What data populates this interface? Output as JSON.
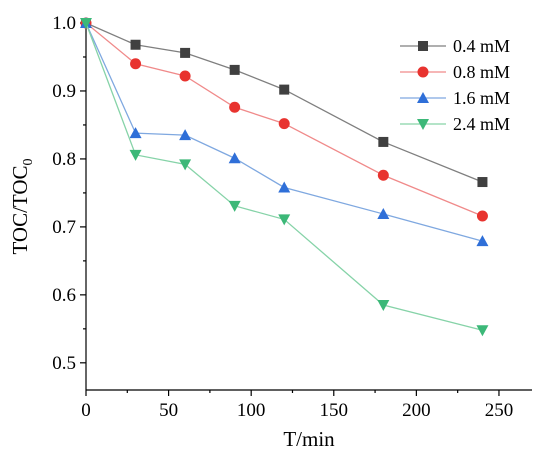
{
  "chart_data": {
    "type": "line",
    "xlabel": "T/min",
    "ylabel": "TOC/TOC",
    "ylabel_subscript": "0",
    "xlim": [
      0,
      270
    ],
    "ylim": [
      0.46,
      1.0
    ],
    "xticks": [
      "0",
      "50",
      "100",
      "150",
      "200",
      "250"
    ],
    "xtick_values": [
      0,
      50,
      100,
      150,
      200,
      250
    ],
    "yticks": [
      "0.5",
      "0.6",
      "0.7",
      "0.8",
      "0.9",
      "1.0"
    ],
    "ytick_values": [
      0.5,
      0.6,
      0.7,
      0.8,
      0.9,
      1.0
    ],
    "grid": false,
    "legend_position": "top-right",
    "x": [
      0,
      30,
      60,
      90,
      120,
      180,
      240
    ],
    "series": [
      {
        "name": "0.4 mM",
        "color": "#7f7f7f",
        "marker_color": "#404040",
        "marker": "square",
        "values": [
          1.0,
          0.968,
          0.956,
          0.931,
          0.902,
          0.825,
          0.766
        ]
      },
      {
        "name": "0.8 mM",
        "color": "#f08a8a",
        "marker_color": "#e8332f",
        "marker": "circle",
        "values": [
          1.0,
          0.94,
          0.922,
          0.876,
          0.852,
          0.776,
          0.716
        ]
      },
      {
        "name": "1.6 mM",
        "color": "#7fa8e0",
        "marker_color": "#2f6fd8",
        "marker": "triangle-up",
        "values": [
          1.0,
          0.838,
          0.835,
          0.801,
          0.758,
          0.719,
          0.679
        ]
      },
      {
        "name": "2.4 mM",
        "color": "#86d3a8",
        "marker_color": "#3cb878",
        "marker": "triangle-down",
        "values": [
          1.0,
          0.806,
          0.792,
          0.731,
          0.711,
          0.585,
          0.548
        ]
      }
    ]
  }
}
